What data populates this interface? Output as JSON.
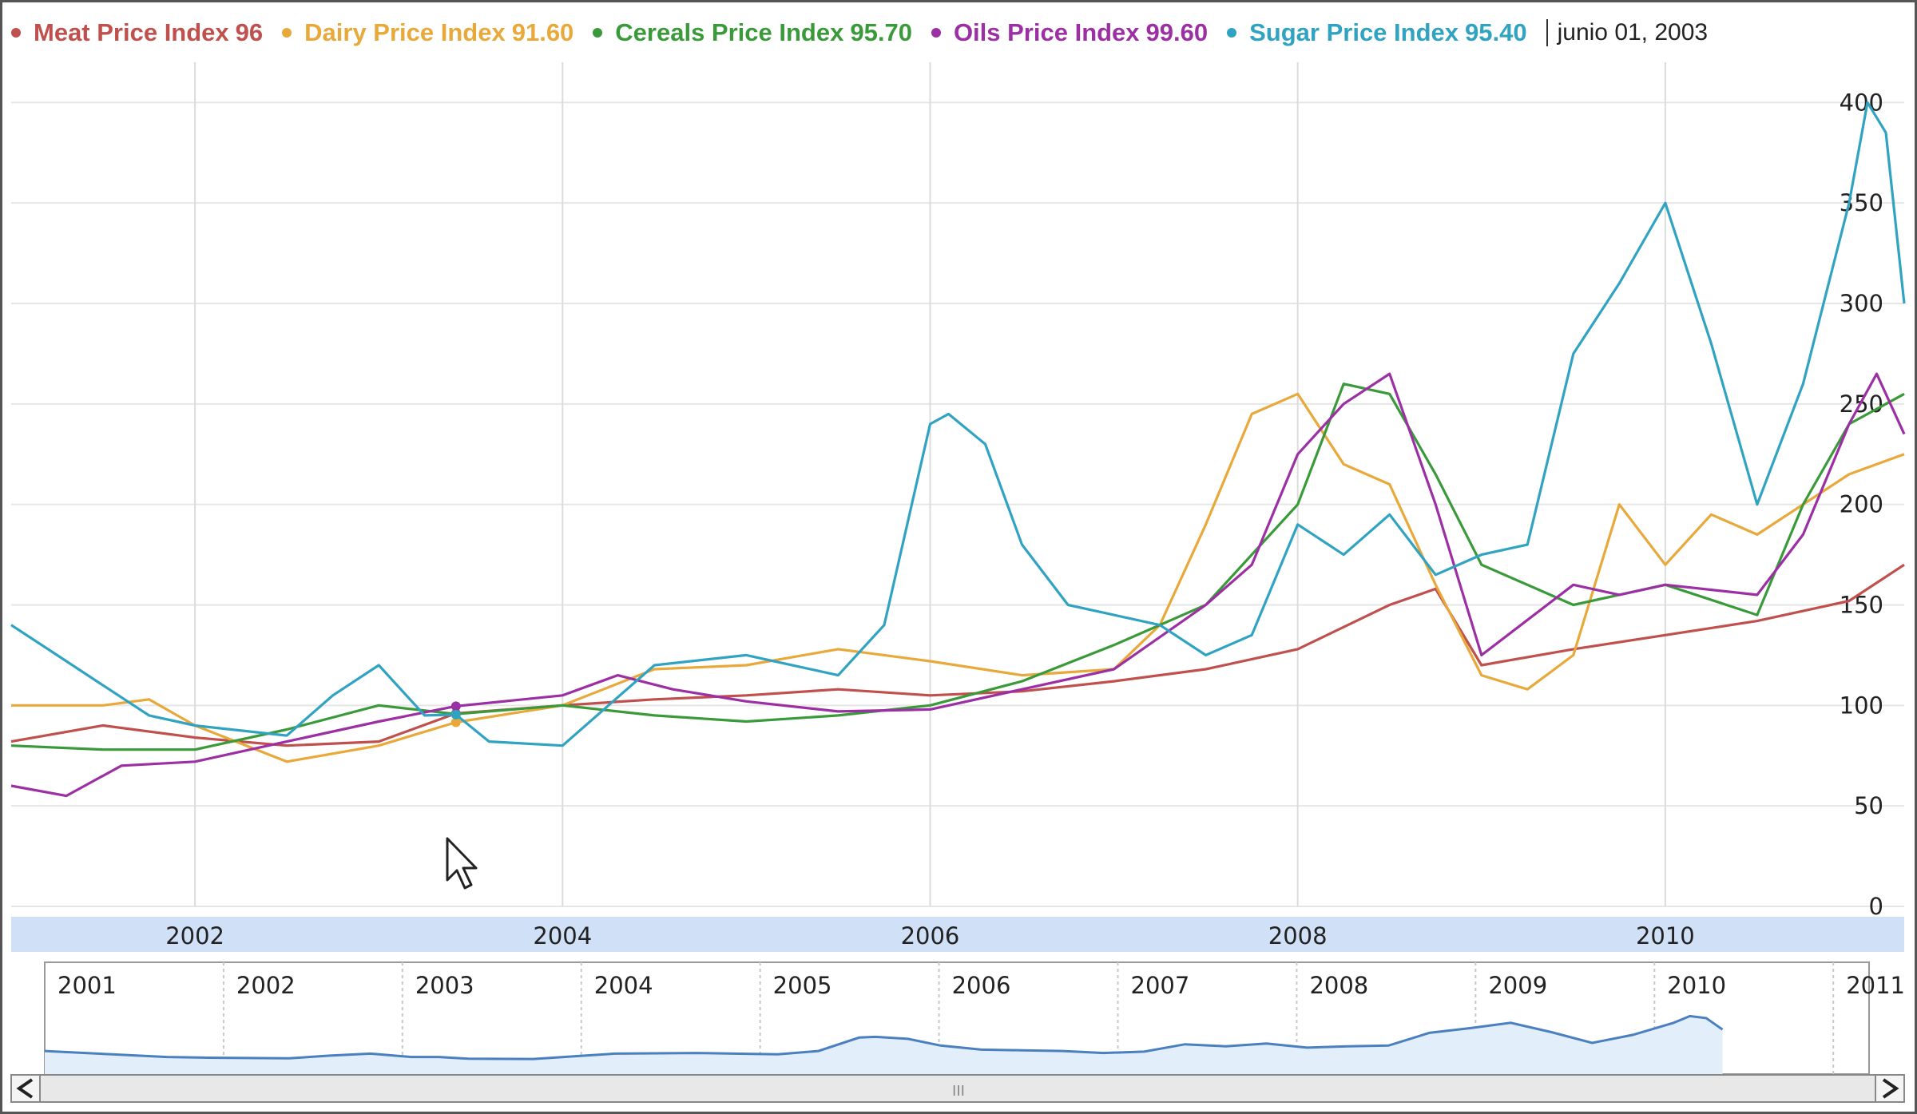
{
  "legend": {
    "date_text": "junio 01, 2003",
    "items": [
      {
        "label": "Meat Price Index",
        "value": "96",
        "color": "#c0504d"
      },
      {
        "label": "Dairy Price Index",
        "value": "91.60",
        "color": "#e8a93a"
      },
      {
        "label": "Cereals Price Index",
        "value": "95.70",
        "color": "#3a9a3a"
      },
      {
        "label": "Oils Price Index",
        "value": "99.60",
        "color": "#9b2fa3"
      },
      {
        "label": "Sugar Price Index",
        "value": "95.40",
        "color": "#31a3c2"
      }
    ]
  },
  "navigator": {
    "year_labels": [
      "2001",
      "2002",
      "2003",
      "2004",
      "2005",
      "2006",
      "2007",
      "2008",
      "2009",
      "2010",
      "2011"
    ],
    "scroll_left_icon": "chevron-left-icon",
    "scroll_right_icon": "chevron-right-icon",
    "scroll_thumb_glyph": "III"
  },
  "chart_data": {
    "type": "line",
    "x_axis_ticks": [
      "2002",
      "2004",
      "2006",
      "2008",
      "2010"
    ],
    "y_axis_ticks": [
      0,
      50,
      100,
      150,
      200,
      250,
      300,
      350,
      400
    ],
    "ylim": [
      0,
      420
    ],
    "xlim": [
      2001.0,
      2011.3
    ],
    "grid": true,
    "legend_position": "top",
    "crosshair_x": 2003.42,
    "series": [
      {
        "name": "Meat Price Index",
        "color": "#c0504d",
        "x": [
          2001.0,
          2001.5,
          2002.0,
          2002.5,
          2003.0,
          2003.42,
          2004.0,
          2004.5,
          2005.0,
          2005.5,
          2006.0,
          2006.5,
          2007.0,
          2007.5,
          2008.0,
          2008.5,
          2008.75,
          2009.0,
          2009.5,
          2010.0,
          2010.5,
          2011.0,
          2011.3
        ],
        "y": [
          82,
          90,
          84,
          80,
          82,
          96,
          100,
          103,
          105,
          108,
          105,
          107,
          112,
          118,
          128,
          150,
          158,
          120,
          128,
          135,
          142,
          152,
          170
        ]
      },
      {
        "name": "Dairy Price Index",
        "color": "#e8a93a",
        "x": [
          2001.0,
          2001.5,
          2001.75,
          2002.0,
          2002.5,
          2003.0,
          2003.42,
          2004.0,
          2004.5,
          2005.0,
          2005.5,
          2006.0,
          2006.5,
          2007.0,
          2007.25,
          2007.5,
          2007.75,
          2008.0,
          2008.25,
          2008.5,
          2008.75,
          2009.0,
          2009.25,
          2009.5,
          2009.75,
          2010.0,
          2010.25,
          2010.5,
          2010.75,
          2011.0,
          2011.3
        ],
        "y": [
          100,
          100,
          103,
          90,
          72,
          80,
          91.6,
          100,
          118,
          120,
          128,
          122,
          115,
          118,
          140,
          190,
          245,
          255,
          220,
          210,
          160,
          115,
          108,
          125,
          200,
          170,
          195,
          185,
          200,
          215,
          225
        ]
      },
      {
        "name": "Cereals Price Index",
        "color": "#3a9a3a",
        "x": [
          2001.0,
          2001.5,
          2002.0,
          2002.5,
          2003.0,
          2003.42,
          2004.0,
          2004.5,
          2005.0,
          2005.5,
          2006.0,
          2006.5,
          2007.0,
          2007.5,
          2008.0,
          2008.25,
          2008.5,
          2008.75,
          2009.0,
          2009.5,
          2010.0,
          2010.5,
          2010.75,
          2011.0,
          2011.3
        ],
        "y": [
          80,
          78,
          78,
          88,
          100,
          95.7,
          100,
          95,
          92,
          95,
          100,
          112,
          130,
          150,
          200,
          260,
          255,
          215,
          170,
          150,
          160,
          145,
          200,
          240,
          255
        ]
      },
      {
        "name": "Oils Price Index",
        "color": "#9b2fa3",
        "x": [
          2001.0,
          2001.3,
          2001.6,
          2002.0,
          2002.5,
          2003.0,
          2003.42,
          2004.0,
          2004.3,
          2004.6,
          2005.0,
          2005.5,
          2006.0,
          2006.5,
          2007.0,
          2007.5,
          2007.75,
          2008.0,
          2008.25,
          2008.5,
          2008.75,
          2009.0,
          2009.5,
          2009.75,
          2010.0,
          2010.5,
          2010.75,
          2011.0,
          2011.15,
          2011.3
        ],
        "y": [
          60,
          55,
          70,
          72,
          82,
          92,
          99.6,
          105,
          115,
          108,
          102,
          97,
          98,
          108,
          118,
          150,
          170,
          225,
          250,
          265,
          200,
          125,
          160,
          155,
          160,
          155,
          185,
          240,
          265,
          235
        ]
      },
      {
        "name": "Sugar Price Index",
        "color": "#31a3c2",
        "x": [
          2001.0,
          2001.25,
          2001.5,
          2001.75,
          2002.0,
          2002.5,
          2002.75,
          2003.0,
          2003.25,
          2003.42,
          2003.6,
          2004.0,
          2004.25,
          2004.5,
          2005.0,
          2005.5,
          2005.75,
          2006.0,
          2006.1,
          2006.3,
          2006.5,
          2006.75,
          2007.0,
          2007.25,
          2007.5,
          2007.75,
          2008.0,
          2008.25,
          2008.5,
          2008.75,
          2009.0,
          2009.25,
          2009.5,
          2009.75,
          2010.0,
          2010.25,
          2010.5,
          2010.75,
          2011.0,
          2011.1,
          2011.2,
          2011.3
        ],
        "y": [
          140,
          125,
          110,
          95,
          90,
          85,
          105,
          120,
          95,
          95.4,
          82,
          80,
          100,
          120,
          125,
          115,
          140,
          240,
          245,
          230,
          180,
          150,
          145,
          140,
          125,
          135,
          190,
          175,
          195,
          165,
          175,
          180,
          275,
          310,
          350,
          280,
          200,
          260,
          350,
          400,
          385,
          300
        ]
      }
    ]
  }
}
